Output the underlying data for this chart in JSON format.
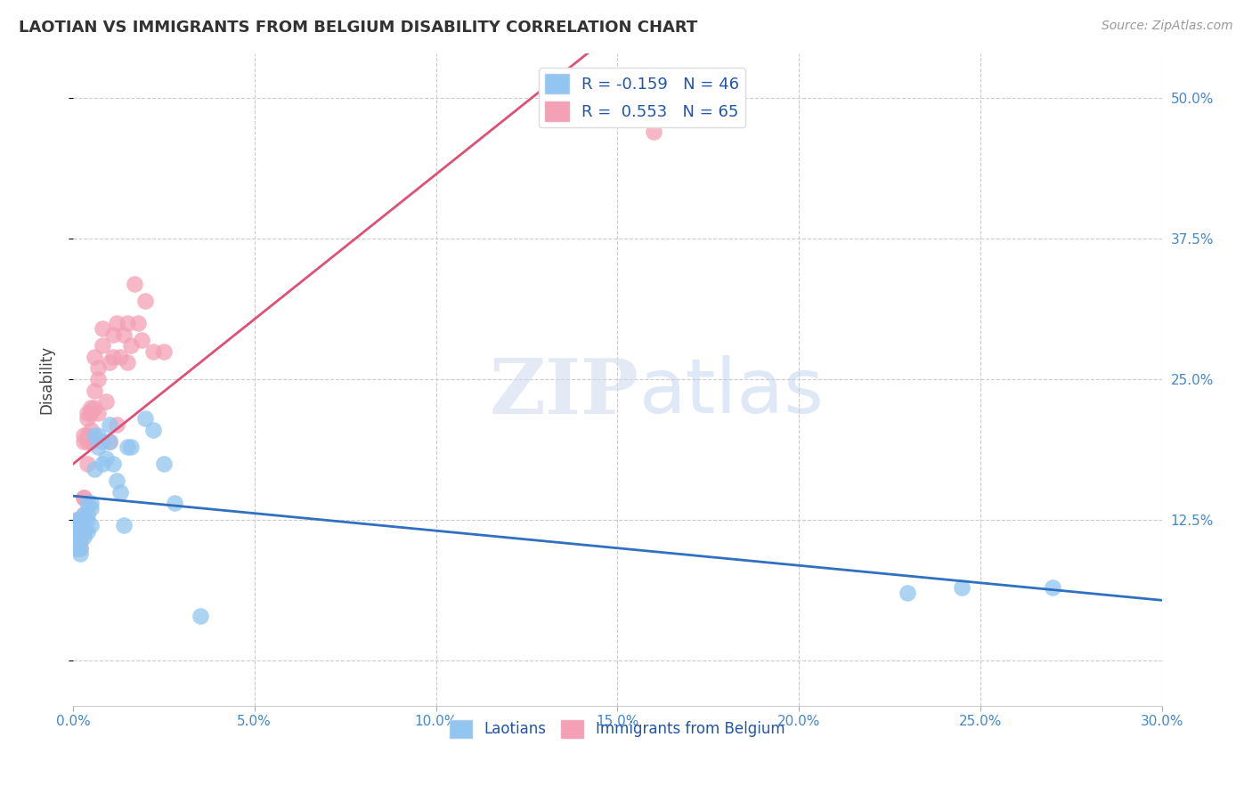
{
  "title": "LAOTIAN VS IMMIGRANTS FROM BELGIUM DISABILITY CORRELATION CHART",
  "source": "Source: ZipAtlas.com",
  "ylabel": "Disability",
  "blue_color": "#92C5F0",
  "pink_color": "#F4A0B5",
  "blue_line_color": "#3070C0",
  "pink_line_color": "#E05075",
  "xlim": [
    0.0,
    0.3
  ],
  "ylim": [
    -0.04,
    0.54
  ],
  "ytick_values": [
    0.0,
    0.125,
    0.25,
    0.375,
    0.5
  ],
  "ytick_labels": [
    "",
    "12.5%",
    "25.0%",
    "37.5%",
    "50.0%"
  ],
  "xtick_values": [
    0.0,
    0.05,
    0.1,
    0.15,
    0.2,
    0.25,
    0.3
  ],
  "xtick_labels": [
    "0.0%",
    "5.0%",
    "10.0%",
    "15.0%",
    "20.0%",
    "25.0%",
    "30.0%"
  ],
  "legend_blue_label": "R = -0.159   N = 46",
  "legend_pink_label": "R =  0.553   N = 65",
  "legend_bottom_blue": "Laotians",
  "legend_bottom_pink": "Immigrants from Belgium",
  "laotians_x": [
    0.001,
    0.001,
    0.001,
    0.001,
    0.001,
    0.002,
    0.002,
    0.002,
    0.002,
    0.002,
    0.002,
    0.003,
    0.003,
    0.003,
    0.003,
    0.003,
    0.004,
    0.004,
    0.004,
    0.004,
    0.005,
    0.005,
    0.005,
    0.006,
    0.006,
    0.007,
    0.007,
    0.008,
    0.008,
    0.009,
    0.01,
    0.01,
    0.011,
    0.012,
    0.013,
    0.014,
    0.015,
    0.016,
    0.02,
    0.022,
    0.025,
    0.028,
    0.035,
    0.23,
    0.245,
    0.27
  ],
  "laotians_y": [
    0.115,
    0.12,
    0.125,
    0.1,
    0.11,
    0.125,
    0.115,
    0.11,
    0.12,
    0.095,
    0.1,
    0.115,
    0.12,
    0.13,
    0.11,
    0.115,
    0.13,
    0.125,
    0.14,
    0.115,
    0.135,
    0.12,
    0.14,
    0.17,
    0.2,
    0.19,
    0.2,
    0.175,
    0.195,
    0.18,
    0.195,
    0.21,
    0.175,
    0.16,
    0.15,
    0.12,
    0.19,
    0.19,
    0.215,
    0.205,
    0.175,
    0.14,
    0.04,
    0.06,
    0.065,
    0.065
  ],
  "belgium_x": [
    0.001,
    0.001,
    0.001,
    0.001,
    0.001,
    0.001,
    0.001,
    0.001,
    0.001,
    0.001,
    0.001,
    0.001,
    0.001,
    0.002,
    0.002,
    0.002,
    0.002,
    0.002,
    0.002,
    0.002,
    0.002,
    0.002,
    0.003,
    0.003,
    0.003,
    0.003,
    0.003,
    0.003,
    0.003,
    0.004,
    0.004,
    0.004,
    0.004,
    0.004,
    0.005,
    0.005,
    0.005,
    0.005,
    0.006,
    0.006,
    0.006,
    0.007,
    0.007,
    0.007,
    0.008,
    0.008,
    0.009,
    0.01,
    0.01,
    0.011,
    0.011,
    0.012,
    0.012,
    0.013,
    0.014,
    0.015,
    0.015,
    0.016,
    0.017,
    0.018,
    0.019,
    0.02,
    0.022,
    0.025,
    0.16
  ],
  "belgium_y": [
    0.115,
    0.12,
    0.11,
    0.105,
    0.115,
    0.125,
    0.115,
    0.1,
    0.11,
    0.105,
    0.11,
    0.115,
    0.1,
    0.12,
    0.115,
    0.105,
    0.11,
    0.12,
    0.125,
    0.115,
    0.12,
    0.1,
    0.13,
    0.115,
    0.12,
    0.145,
    0.195,
    0.2,
    0.145,
    0.2,
    0.22,
    0.195,
    0.175,
    0.215,
    0.22,
    0.195,
    0.205,
    0.225,
    0.24,
    0.225,
    0.27,
    0.26,
    0.25,
    0.22,
    0.28,
    0.295,
    0.23,
    0.265,
    0.195,
    0.27,
    0.29,
    0.3,
    0.21,
    0.27,
    0.29,
    0.3,
    0.265,
    0.28,
    0.335,
    0.3,
    0.285,
    0.32,
    0.275,
    0.275,
    0.47
  ]
}
